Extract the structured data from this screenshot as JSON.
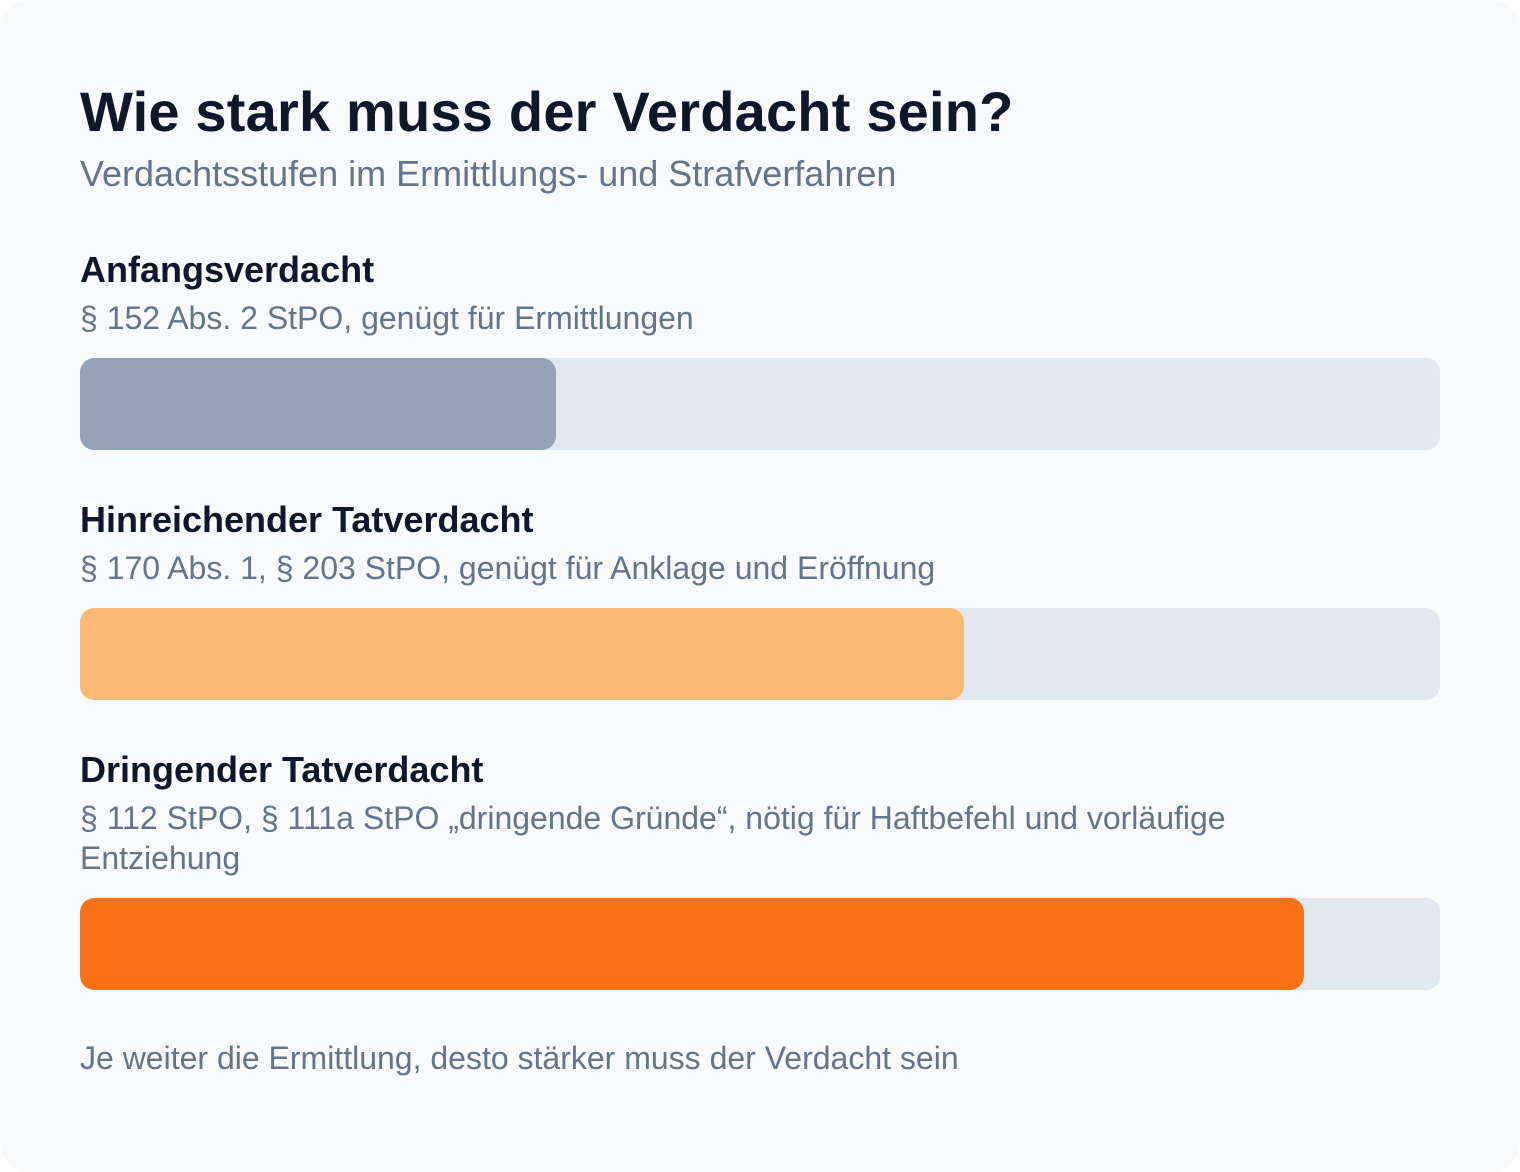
{
  "title": "Wie stark muss der Verdacht sein?",
  "subtitle": "Verdachtsstufen im Ermittlungs- und Strafverfahren",
  "chart_data": {
    "type": "bar",
    "orientation": "horizontal",
    "categories": [
      "Anfangsverdacht",
      "Hinreichender Tatverdacht",
      "Dringender Tatverdacht"
    ],
    "descriptions": [
      "§ 152 Abs. 2 StPO, genügt für Ermittlungen",
      "§ 170 Abs. 1, § 203 StPO, genügt für Anklage und Eröffnung",
      "§ 112 StPO, § 111a StPO „dringende Gründe“, nötig für Haftbefehl und vorläufige Entziehung"
    ],
    "values": [
      35,
      65,
      90
    ],
    "ylim": [
      0,
      100
    ],
    "colors": [
      "#94a3b8",
      "#fdba74",
      "#f97316"
    ],
    "track_color": "#e2e8f0",
    "grid": false
  },
  "footer": "Je weiter die Ermittlung, desto stärker muss der Verdacht sein"
}
